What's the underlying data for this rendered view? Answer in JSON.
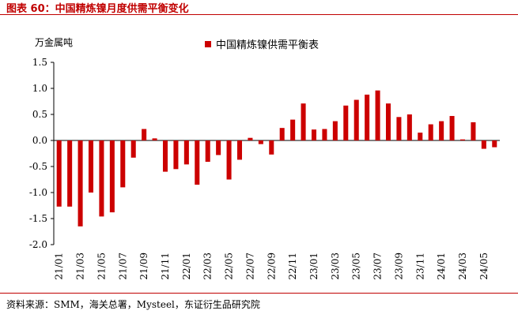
{
  "figure": {
    "title": "图表 60：中国精炼镍月度供需平衡变化",
    "source": "资料来源：SMM，海关总署，Mysteel，东证衍生品研究院"
  },
  "chart_data": {
    "type": "bar",
    "unit_label": "万金属吨",
    "legend": "中国精炼镍供需平衡表",
    "legend_position": "top-center",
    "grid": false,
    "ylim": [
      -2.0,
      1.5
    ],
    "yticks": [
      "1.5",
      "1.0",
      "0.5",
      "0.0",
      "-0.5",
      "-1.0",
      "-1.5",
      "-2.0"
    ],
    "categories": [
      "21/01",
      "21/02",
      "21/03",
      "21/04",
      "21/05",
      "21/06",
      "21/07",
      "21/08",
      "21/09",
      "21/10",
      "21/11",
      "21/12",
      "22/01",
      "22/02",
      "22/03",
      "22/04",
      "22/05",
      "22/06",
      "22/07",
      "22/08",
      "22/09",
      "22/10",
      "22/11",
      "22/12",
      "23/01",
      "23/02",
      "23/03",
      "23/04",
      "23/05",
      "23/06",
      "23/07",
      "23/08",
      "23/09",
      "23/10",
      "23/11",
      "23/12",
      "24/01",
      "24/02",
      "24/03",
      "24/04",
      "24/05",
      "24/06"
    ],
    "tick_labels": [
      "21/01",
      "21/03",
      "21/05",
      "21/07",
      "21/09",
      "21/11",
      "22/01",
      "22/03",
      "22/05",
      "22/07",
      "22/09",
      "22/11",
      "23/01",
      "23/03",
      "23/05",
      "23/07",
      "23/09",
      "23/11",
      "24/01",
      "24/03",
      "24/05"
    ],
    "values": [
      -1.27,
      -1.27,
      -1.65,
      -1.0,
      -1.46,
      -1.38,
      -0.9,
      -0.33,
      0.22,
      0.04,
      -0.6,
      -0.55,
      -0.46,
      -0.85,
      -0.41,
      -0.28,
      -0.75,
      -0.37,
      0.05,
      -0.07,
      -0.27,
      0.24,
      0.4,
      0.71,
      0.21,
      0.22,
      0.37,
      0.67,
      0.78,
      0.88,
      0.96,
      0.71,
      0.45,
      0.5,
      0.15,
      0.31,
      0.37,
      0.47,
      0.02,
      0.35,
      -0.16,
      -0.13
    ],
    "bar_color": "#cc0000"
  }
}
